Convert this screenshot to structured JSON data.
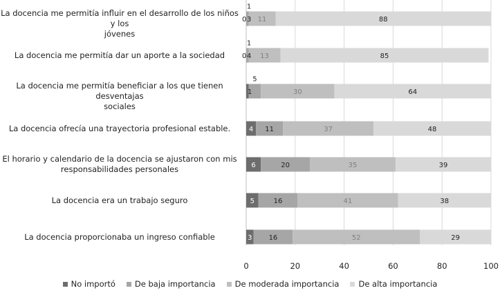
{
  "chart_data": {
    "type": "bar",
    "orientation": "horizontal",
    "stacked": true,
    "categories": [
      "La docencia me permitía influir en el desarrollo de los niños y los jóvenes",
      "La docencia me permitía dar un aporte a la sociedad",
      "La docencia me permitía beneficiar a los que tienen desventajas sociales",
      "La docencia ofrecía una trayectoria profesional estable.",
      "El horario y calendario de la docencia se ajustaron con mis responsabilidades personales",
      "La docencia era un trabajo seguro",
      "La docencia proporcionaba un ingreso confiable"
    ],
    "category_lines": [
      [
        "La docencia me permitía influir en el desarrollo de los niños y los",
        "jóvenes"
      ],
      [
        "La docencia me permitía dar un aporte a la sociedad"
      ],
      [
        "La docencia me permitía beneficiar a los que tienen desventajas",
        "sociales"
      ],
      [
        "La docencia ofrecía una trayectoria profesional estable."
      ],
      [
        "El horario y calendario de la docencia se ajustaron con mis",
        "responsabilidades personales"
      ],
      [
        "La docencia era un trabajo seguro"
      ],
      [
        "La docencia proporcionaba un ingreso confiable"
      ]
    ],
    "series": [
      {
        "name": "No importó",
        "color": "#6d6d6d",
        "label_color": "#ffffff",
        "values": [
          0,
          0,
          1,
          4,
          6,
          5,
          3
        ],
        "labels": [
          "0",
          "0",
          "1",
          "4",
          "6",
          "5",
          "3"
        ]
      },
      {
        "name": "De baja importancia",
        "color": "#a6a6a6",
        "label_color": "#222222",
        "values": [
          1,
          1,
          5,
          11,
          20,
          16,
          16
        ],
        "labels": [
          "1",
          "1",
          "5",
          "11",
          "20",
          "16",
          "16"
        ]
      },
      {
        "name": "De moderada importancia",
        "color": "#bfbfbf",
        "label_color": "#7f7f7f",
        "values": [
          11,
          13,
          30,
          37,
          35,
          41,
          52
        ],
        "labels": [
          "11",
          "13",
          "30",
          "37",
          "35",
          "41",
          "52"
        ]
      },
      {
        "name": "De alta importancia",
        "color": "#d9d9d9",
        "label_color": "#222222",
        "values": [
          88,
          85,
          64,
          48,
          39,
          38,
          29
        ],
        "labels": [
          "88",
          "85",
          "64",
          "48",
          "39",
          "38",
          "29"
        ]
      }
    ],
    "row_label_text": [
      {
        "row": 0,
        "items": [
          "1",
          "0",
          "3",
          "11",
          "88"
        ]
      },
      {
        "row": 1,
        "items": [
          "1",
          "0",
          "4",
          "13",
          "85"
        ]
      }
    ],
    "xlim": [
      0,
      100
    ],
    "xticks": [
      "0",
      "20",
      "40",
      "60",
      "80",
      "100"
    ],
    "xticks_values": [
      0,
      20,
      40,
      60,
      80,
      100
    ],
    "title": "",
    "xlabel": "",
    "ylabel": "",
    "grid": true,
    "legend_position": "bottom"
  }
}
